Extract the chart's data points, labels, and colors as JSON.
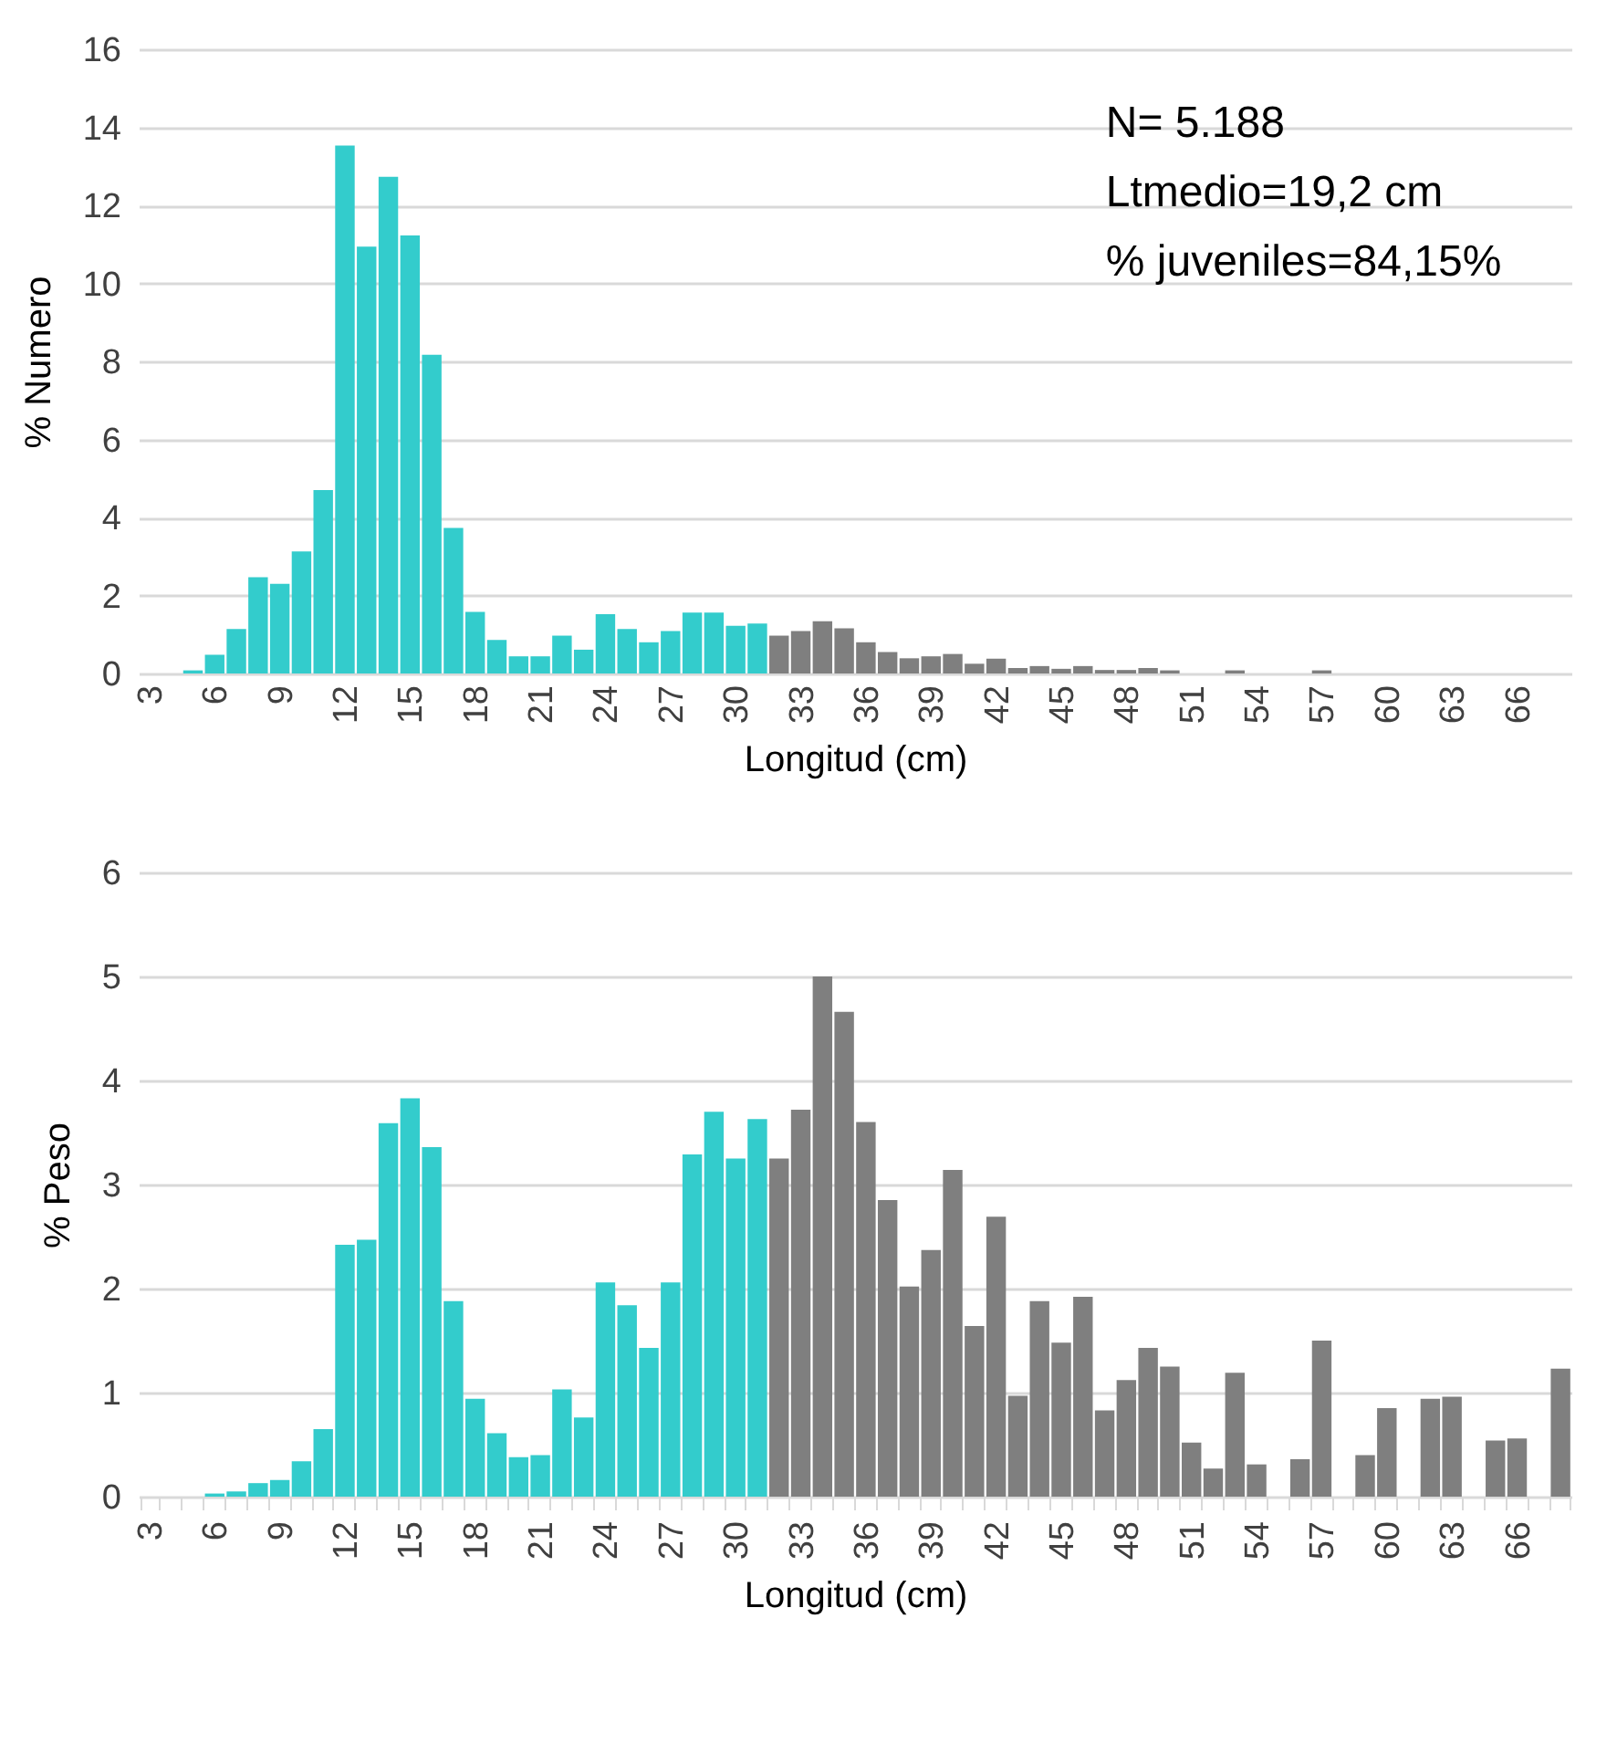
{
  "chart_data": [
    {
      "type": "bar",
      "ylabel": "% Numero",
      "xlabel": "Longitud (cm)",
      "categories": [
        "3",
        null,
        null,
        "6",
        null,
        null,
        "9",
        null,
        null,
        "12",
        null,
        null,
        "15",
        null,
        null,
        "18",
        null,
        null,
        "21",
        null,
        null,
        "24",
        null,
        null,
        "27",
        null,
        null,
        "30",
        null,
        null,
        "33",
        null,
        null,
        "36",
        null,
        null,
        "39",
        null,
        null,
        "42",
        null,
        null,
        "45",
        null,
        null,
        "48",
        null,
        null,
        "51",
        null,
        null,
        "54",
        null,
        null,
        "57",
        null,
        null,
        "60",
        null,
        null,
        "63",
        null,
        null,
        "66",
        null,
        null
      ],
      "values": [
        0,
        0,
        0.08,
        0.48,
        1.14,
        2.47,
        2.3,
        3.13,
        4.7,
        13.53,
        10.94,
        12.73,
        11.23,
        8.17,
        3.73,
        1.58,
        0.86,
        0.44,
        0.44,
        0.97,
        0.61,
        1.52,
        1.14,
        0.8,
        1.09,
        1.56,
        1.56,
        1.22,
        1.28,
        0.97,
        1.09,
        1.34,
        1.16,
        0.8,
        0.55,
        0.39,
        0.44,
        0.5,
        0.25,
        0.38,
        0.14,
        0.19,
        0.12,
        0.19,
        0.09,
        0.09,
        0.14,
        0.08,
        0,
        0,
        0.08,
        0,
        0,
        0,
        0.08,
        0,
        0,
        0,
        0,
        0,
        0,
        0,
        0,
        0,
        0,
        0
      ],
      "colors": [
        "#33cccc",
        "#33cccc",
        "#33cccc",
        "#33cccc",
        "#33cccc",
        "#33cccc",
        "#33cccc",
        "#33cccc",
        "#33cccc",
        "#33cccc",
        "#33cccc",
        "#33cccc",
        "#33cccc",
        "#33cccc",
        "#33cccc",
        "#33cccc",
        "#33cccc",
        "#33cccc",
        "#33cccc",
        "#33cccc",
        "#33cccc",
        "#33cccc",
        "#33cccc",
        "#33cccc",
        "#33cccc",
        "#33cccc",
        "#33cccc",
        "#33cccc",
        "#33cccc",
        "#7f7f7f",
        "#7f7f7f",
        "#7f7f7f",
        "#7f7f7f",
        "#7f7f7f",
        "#7f7f7f",
        "#7f7f7f",
        "#7f7f7f",
        "#7f7f7f",
        "#7f7f7f",
        "#7f7f7f",
        "#7f7f7f",
        "#7f7f7f",
        "#7f7f7f",
        "#7f7f7f",
        "#7f7f7f",
        "#7f7f7f",
        "#7f7f7f",
        "#7f7f7f",
        "#7f7f7f",
        "#7f7f7f",
        "#7f7f7f",
        "#7f7f7f",
        "#7f7f7f",
        "#7f7f7f",
        "#7f7f7f",
        "#7f7f7f",
        "#7f7f7f",
        "#7f7f7f",
        "#7f7f7f",
        "#7f7f7f",
        "#7f7f7f",
        "#7f7f7f",
        "#7f7f7f",
        "#7f7f7f",
        "#7f7f7f",
        "#7f7f7f"
      ],
      "ylim": [
        0,
        16
      ],
      "yticks": [
        0,
        2,
        4,
        6,
        8,
        10,
        12,
        14,
        16
      ],
      "grid": "y",
      "annotations": [
        "N= 5.188",
        "Ltmedio=19,2 cm",
        "% juveniles=84,15%"
      ]
    },
    {
      "type": "bar",
      "ylabel": "% Peso",
      "xlabel": "Longitud (cm)",
      "categories": [
        "3",
        null,
        null,
        "6",
        null,
        null,
        "9",
        null,
        null,
        "12",
        null,
        null,
        "15",
        null,
        null,
        "18",
        null,
        null,
        "21",
        null,
        null,
        "24",
        null,
        null,
        "27",
        null,
        null,
        "30",
        null,
        null,
        "33",
        null,
        null,
        "36",
        null,
        null,
        "39",
        null,
        null,
        "42",
        null,
        null,
        "45",
        null,
        null,
        "48",
        null,
        null,
        "51",
        null,
        null,
        "54",
        null,
        null,
        "57",
        null,
        null,
        "60",
        null,
        null,
        "63",
        null,
        null,
        "66",
        null,
        null
      ],
      "values": [
        0,
        0,
        0,
        0.03,
        0.05,
        0.13,
        0.16,
        0.34,
        0.65,
        2.42,
        2.47,
        3.59,
        3.83,
        3.36,
        1.88,
        0.94,
        0.61,
        0.38,
        0.4,
        1.03,
        0.76,
        2.06,
        1.84,
        1.43,
        2.06,
        3.29,
        3.7,
        3.25,
        3.63,
        3.25,
        3.72,
        5.0,
        4.66,
        3.6,
        2.85,
        2.02,
        2.37,
        3.14,
        1.64,
        2.69,
        0.97,
        1.88,
        1.48,
        1.92,
        0.83,
        1.12,
        1.43,
        1.25,
        0.52,
        0.27,
        1.19,
        0.31,
        0,
        0.36,
        1.5,
        0,
        0.4,
        0.85,
        0,
        0.94,
        0.96,
        0,
        0.54,
        0.56,
        0,
        1.23
      ],
      "colors": [
        "#33cccc",
        "#33cccc",
        "#33cccc",
        "#33cccc",
        "#33cccc",
        "#33cccc",
        "#33cccc",
        "#33cccc",
        "#33cccc",
        "#33cccc",
        "#33cccc",
        "#33cccc",
        "#33cccc",
        "#33cccc",
        "#33cccc",
        "#33cccc",
        "#33cccc",
        "#33cccc",
        "#33cccc",
        "#33cccc",
        "#33cccc",
        "#33cccc",
        "#33cccc",
        "#33cccc",
        "#33cccc",
        "#33cccc",
        "#33cccc",
        "#33cccc",
        "#33cccc",
        "#7f7f7f",
        "#7f7f7f",
        "#7f7f7f",
        "#7f7f7f",
        "#7f7f7f",
        "#7f7f7f",
        "#7f7f7f",
        "#7f7f7f",
        "#7f7f7f",
        "#7f7f7f",
        "#7f7f7f",
        "#7f7f7f",
        "#7f7f7f",
        "#7f7f7f",
        "#7f7f7f",
        "#7f7f7f",
        "#7f7f7f",
        "#7f7f7f",
        "#7f7f7f",
        "#7f7f7f",
        "#7f7f7f",
        "#7f7f7f",
        "#7f7f7f",
        "#7f7f7f",
        "#7f7f7f",
        "#7f7f7f",
        "#7f7f7f",
        "#7f7f7f",
        "#7f7f7f",
        "#7f7f7f",
        "#7f7f7f",
        "#7f7f7f",
        "#7f7f7f",
        "#7f7f7f",
        "#7f7f7f",
        "#7f7f7f",
        "#7f7f7f"
      ],
      "ylim": [
        0,
        6
      ],
      "yticks": [
        0,
        1,
        2,
        3,
        4,
        5,
        6
      ],
      "grid": "y"
    }
  ]
}
